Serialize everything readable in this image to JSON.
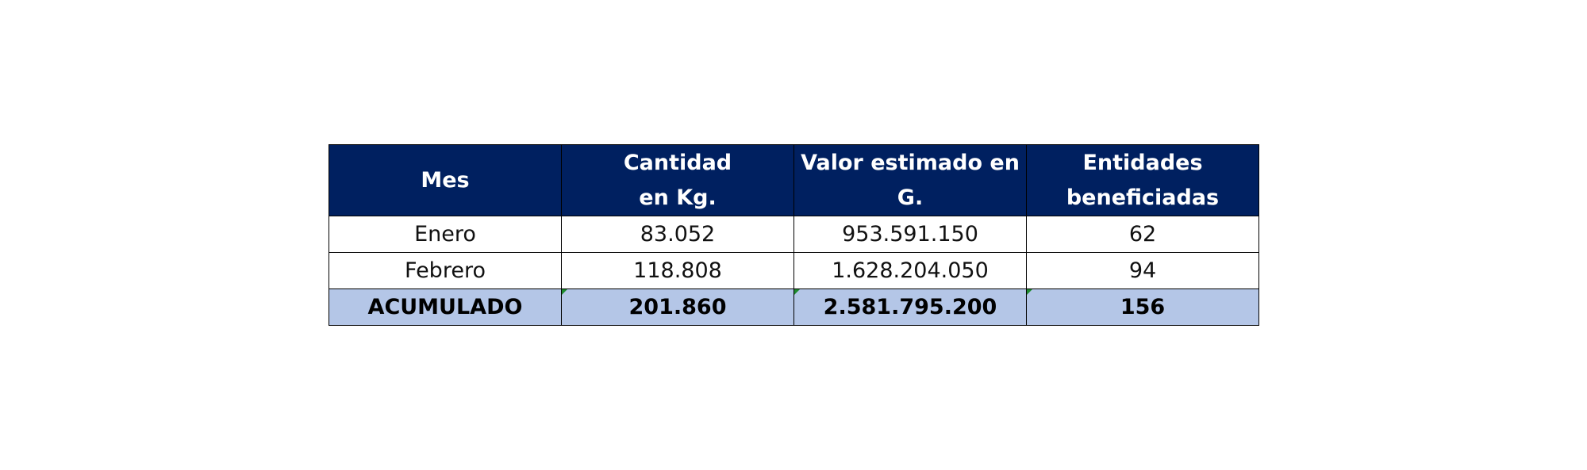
{
  "table": {
    "headers": [
      [
        "Mes"
      ],
      [
        "Cantidad",
        "en Kg."
      ],
      [
        "Valor estimado en",
        "G."
      ],
      [
        "Entidades",
        "beneficiadas"
      ]
    ],
    "rows": [
      [
        "Enero",
        "83.052",
        "953.591.150",
        "62"
      ],
      [
        "Febrero",
        "118.808",
        "1.628.204.050",
        "94"
      ]
    ],
    "total": [
      "ACUMULADO",
      "201.860",
      "2.581.795.200",
      "156"
    ]
  },
  "colors": {
    "header_bg": "#002060",
    "header_text": "#ffffff",
    "total_bg": "#b4c6e7",
    "flag": "#1e8a2e"
  }
}
